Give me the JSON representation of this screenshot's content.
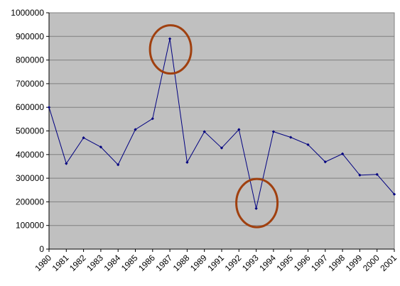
{
  "chart_data": {
    "type": "line",
    "title": "",
    "xlabel": "",
    "ylabel": "",
    "categories": [
      "1980",
      "1981",
      "1982",
      "1983",
      "1984",
      "1985",
      "1986",
      "1987",
      "1988",
      "1989",
      "1991",
      "1992",
      "1993",
      "1994",
      "1995",
      "1996",
      "1997",
      "1998",
      "1999",
      "2000",
      "2001"
    ],
    "series": [
      {
        "values": [
          600000,
          362000,
          471000,
          432000,
          357000,
          506000,
          552000,
          890000,
          367000,
          497000,
          428000,
          506000,
          172000,
          497000,
          473000,
          442000,
          369000,
          403000,
          313000,
          316000,
          232000
        ]
      }
    ],
    "ylim": [
      0,
      1000000
    ],
    "yticks": [
      0,
      100000,
      200000,
      300000,
      400000,
      500000,
      600000,
      700000,
      800000,
      900000,
      1000000
    ],
    "grid": true,
    "legend": "none",
    "colors": {
      "plot_background": "#c0c0c0",
      "grid": "#808080",
      "line": "#000080",
      "annotation_circle": "#a0400f"
    },
    "annotations": [
      {
        "type": "circle",
        "category": "1987",
        "value": 845000
      },
      {
        "type": "circle",
        "category": "1993",
        "value": 195000
      }
    ]
  }
}
